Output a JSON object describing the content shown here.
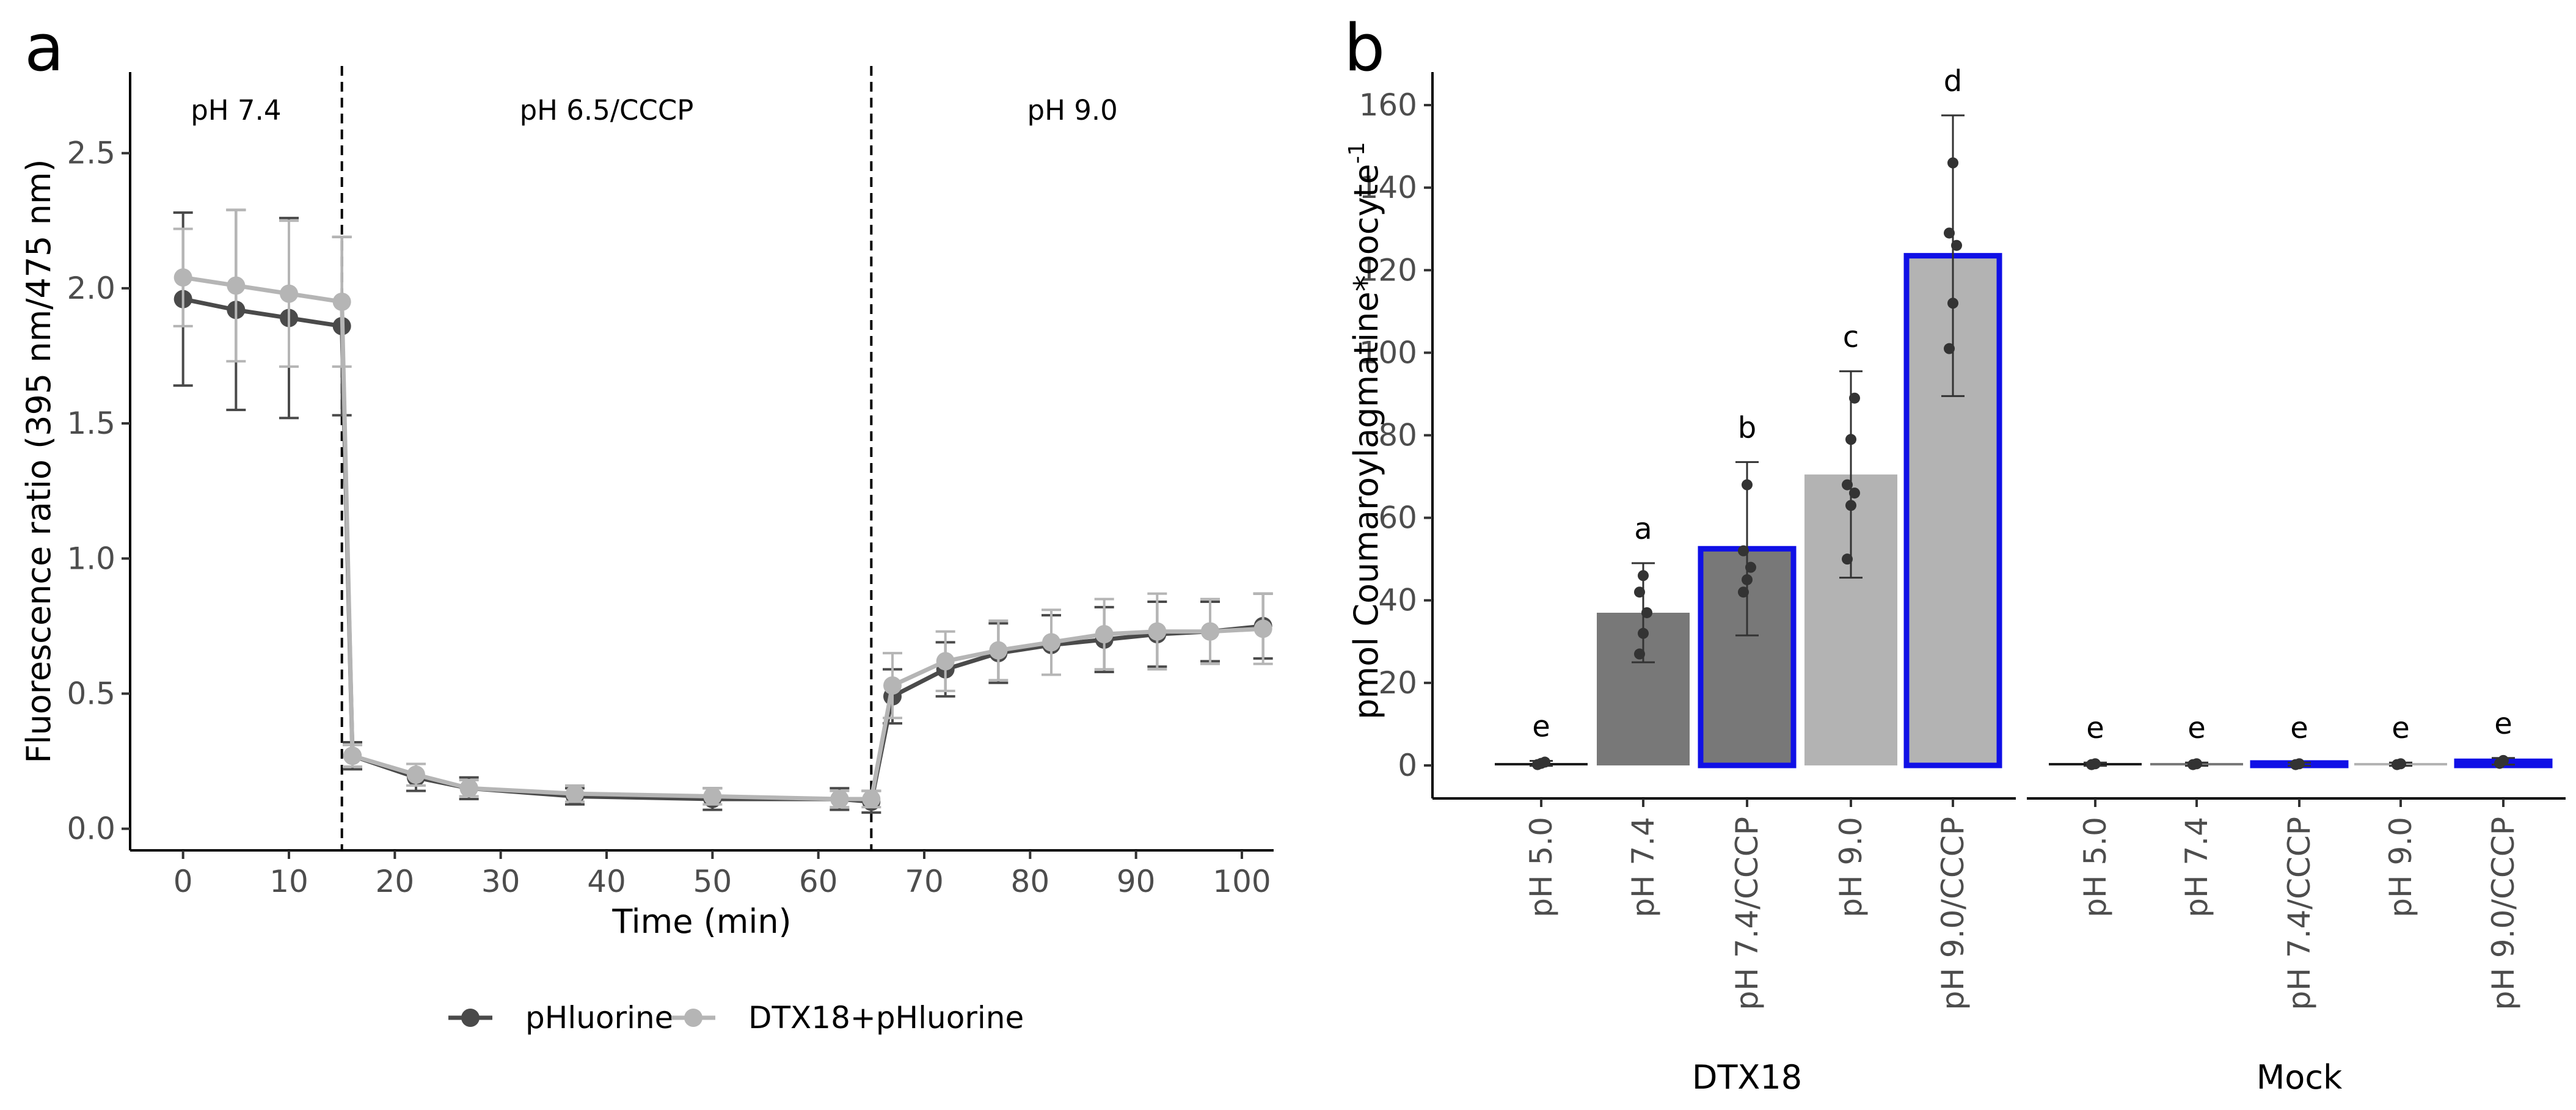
{
  "panels": {
    "a": {
      "letter": "a",
      "chart_data": {
        "type": "line",
        "xlabel": "Time (min)",
        "ylabel": "Fluorescence ratio (395 nm/475 nm)",
        "xlim": [
          -5,
          103
        ],
        "ylim": [
          -0.08,
          2.8
        ],
        "xticks": [
          0,
          10,
          20,
          30,
          40,
          50,
          60,
          70,
          80,
          90,
          100
        ],
        "yticks": [
          0.0,
          0.5,
          1.0,
          1.5,
          2.0,
          2.5
        ],
        "ytick_labels": [
          "0.0",
          "0.5",
          "1.0",
          "1.5",
          "2.0",
          "2.5"
        ],
        "vlines": [
          15,
          65
        ],
        "regions": [
          {
            "label": "pH 7.4",
            "x": 5
          },
          {
            "label": "pH 6.5/CCCP",
            "x": 40
          },
          {
            "label": "pH 9.0",
            "x": 84
          }
        ],
        "series": [
          {
            "name": "pHluorine",
            "color": "#4a4a4a",
            "x": [
              0,
              5,
              10,
              15,
              16,
              22,
              27,
              37,
              50,
              62,
              65,
              67,
              72,
              77,
              82,
              87,
              92,
              97,
              102
            ],
            "y": [
              1.96,
              1.92,
              1.89,
              1.86,
              0.27,
              0.19,
              0.15,
              0.12,
              0.11,
              0.11,
              0.1,
              0.49,
              0.59,
              0.65,
              0.68,
              0.7,
              0.72,
              0.73,
              0.75
            ],
            "err": [
              0.32,
              0.37,
              0.37,
              0.33,
              0.05,
              0.05,
              0.04,
              0.03,
              0.04,
              0.04,
              0.04,
              0.1,
              0.1,
              0.11,
              0.11,
              0.12,
              0.12,
              0.11,
              0.12
            ]
          },
          {
            "name": "DTX18+pHluorine",
            "color": "#b5b5b5",
            "x": [
              0,
              5,
              10,
              15,
              16,
              22,
              27,
              37,
              50,
              62,
              65,
              67,
              72,
              77,
              82,
              87,
              92,
              97,
              102
            ],
            "y": [
              2.04,
              2.01,
              1.98,
              1.95,
              0.27,
              0.2,
              0.15,
              0.13,
              0.12,
              0.11,
              0.11,
              0.53,
              0.62,
              0.66,
              0.69,
              0.72,
              0.73,
              0.73,
              0.74
            ],
            "err": [
              0.18,
              0.28,
              0.27,
              0.24,
              0.04,
              0.04,
              0.03,
              0.03,
              0.03,
              0.03,
              0.03,
              0.12,
              0.11,
              0.11,
              0.12,
              0.13,
              0.14,
              0.12,
              0.13
            ]
          }
        ],
        "legend": [
          {
            "label": "pHluorine",
            "color": "#4a4a4a"
          },
          {
            "label": "DTX18+pHluorine",
            "color": "#b5b5b5"
          }
        ]
      }
    },
    "b": {
      "letter": "b",
      "chart_data": {
        "type": "bar",
        "ylabel": "pmol Coumaroylagmatine*oocyte",
        "ylabel_superscript": "-1",
        "ylim": [
          -8,
          168
        ],
        "yticks": [
          0,
          20,
          40,
          60,
          80,
          100,
          120,
          140,
          160
        ],
        "groups": [
          {
            "name": "DTX18",
            "bars": [
              {
                "label": "pH 5.0",
                "value": 0.5,
                "err": 0.6,
                "fill": "#1a1a1a",
                "highlight": false,
                "sig": "e",
                "points": [
                  0.2,
                  0.5,
                  0.8
                ]
              },
              {
                "label": "pH 7.4",
                "value": 37,
                "err": 12,
                "fill": "#787878",
                "highlight": false,
                "sig": "a",
                "points": [
                  27,
                  32,
                  37,
                  42,
                  46
                ]
              },
              {
                "label": "pH 7.4/CCCP",
                "value": 52.5,
                "err": 21,
                "fill": "#787878",
                "highlight": true,
                "sig": "b",
                "points": [
                  42,
                  45,
                  48,
                  52,
                  68
                ]
              },
              {
                "label": "pH 9.0",
                "value": 70.5,
                "err": 25,
                "fill": "#b3b3b3",
                "highlight": false,
                "sig": "c",
                "points": [
                  50,
                  63,
                  66,
                  68,
                  79,
                  89
                ]
              },
              {
                "label": "pH 9.0/CCCP",
                "value": 123.5,
                "err": 34,
                "fill": "#b3b3b3",
                "highlight": true,
                "sig": "d",
                "points": [
                  101,
                  112,
                  126,
                  129,
                  146
                ]
              }
            ]
          },
          {
            "name": "Mock",
            "bars": [
              {
                "label": "pH 5.0",
                "value": 0.3,
                "err": 0.4,
                "fill": "#1a1a1a",
                "highlight": false,
                "sig": "e",
                "points": [
                  0.2,
                  0.4
                ]
              },
              {
                "label": "pH 7.4",
                "value": 0.3,
                "err": 0.4,
                "fill": "#787878",
                "highlight": false,
                "sig": "e",
                "points": [
                  0.2,
                  0.4
                ]
              },
              {
                "label": "pH 7.4/CCCP",
                "value": 0.3,
                "err": 0.4,
                "fill": "#787878",
                "highlight": true,
                "sig": "e",
                "points": [
                  0.2,
                  0.4
                ]
              },
              {
                "label": "pH 9.0",
                "value": 0.3,
                "err": 0.4,
                "fill": "#b3b3b3",
                "highlight": false,
                "sig": "e",
                "points": [
                  0.2,
                  0.4
                ]
              },
              {
                "label": "pH 9.0/CCCP",
                "value": 1.0,
                "err": 0.8,
                "fill": "#b3b3b3",
                "highlight": true,
                "sig": "e",
                "points": [
                  0.5,
                  1.2
                ]
              }
            ]
          }
        ],
        "highlight_color": "#1010e6",
        "point_color": "#333333"
      }
    }
  }
}
